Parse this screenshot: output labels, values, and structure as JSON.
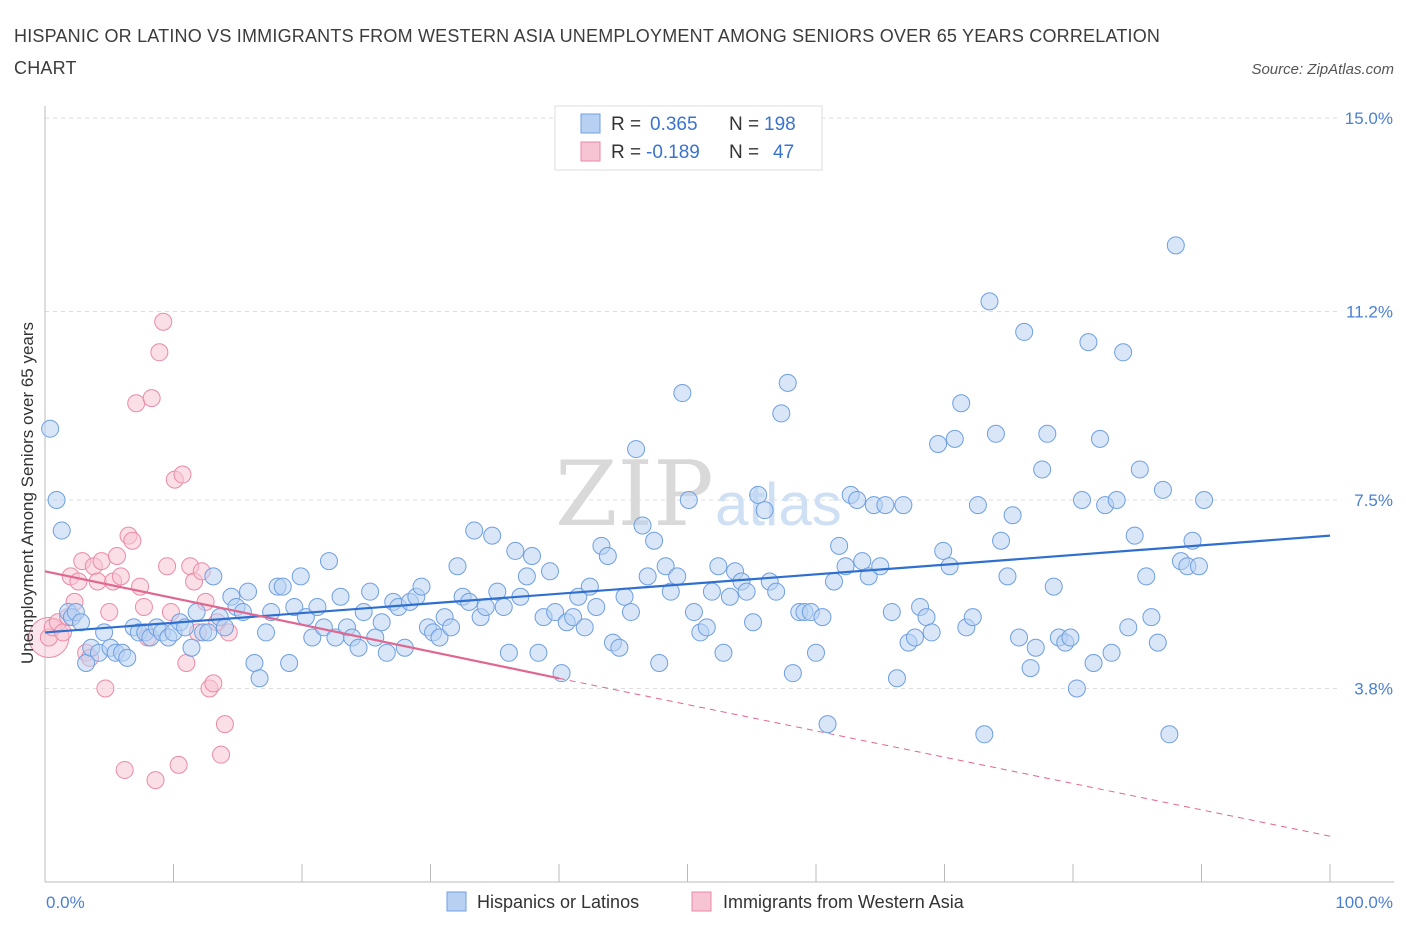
{
  "title": "HISPANIC OR LATINO VS IMMIGRANTS FROM WESTERN ASIA UNEMPLOYMENT AMONG SENIORS OVER 65 YEARS CORRELATION CHART",
  "source": "Source: ZipAtlas.com",
  "watermark": {
    "zip": "ZIP",
    "atlas": "atlas"
  },
  "legend_top": {
    "rows": [
      {
        "r_label": "R =",
        "r_value": "0.365",
        "n_label": "N =",
        "n_value": "198"
      },
      {
        "r_label": "R =",
        "r_value": "-0.189",
        "n_label": "N =",
        "n_value": "47"
      }
    ]
  },
  "legend_bottom": {
    "items": [
      {
        "label": "Hispanics or Latinos"
      },
      {
        "label": "Immigrants from Western Asia"
      }
    ]
  },
  "colors": {
    "blue_fill": "#b8d1f3",
    "blue_stroke": "#6f9fe0",
    "blue_line": "#2f6fd0",
    "pink_fill": "#f7c4d3",
    "pink_stroke": "#ea8aa7",
    "pink_line": "#e0678f",
    "tick_text": "#4a7fd4",
    "grid": "#dddddd"
  },
  "chart_data": {
    "type": "scatter",
    "ylabel": "Unemployment Among Seniors over 65 years",
    "xlim": [
      0,
      100
    ],
    "ylim": [
      0,
      15.0
    ],
    "x_tick_labels": [
      "0.0%",
      "100.0%"
    ],
    "y_ticks": [
      3.8,
      7.5,
      11.2,
      15.0
    ],
    "y_tick_labels": [
      "3.8%",
      "7.5%",
      "11.2%",
      "15.0%"
    ],
    "grid": "horizontal dashed",
    "series": [
      {
        "name": "Hispanics or Latinos",
        "trend": {
          "x0": 0,
          "y0": 4.9,
          "x1": 100,
          "y1": 6.8
        },
        "points": [
          [
            0.4,
            8.9
          ],
          [
            0.9,
            7.5
          ],
          [
            1.3,
            6.9
          ],
          [
            1.8,
            5.3
          ],
          [
            2.1,
            5.2
          ],
          [
            2.4,
            5.3
          ],
          [
            2.8,
            5.1
          ],
          [
            3.2,
            4.3
          ],
          [
            3.6,
            4.6
          ],
          [
            4.2,
            4.5
          ],
          [
            4.6,
            4.9
          ],
          [
            5.1,
            4.6
          ],
          [
            5.5,
            4.5
          ],
          [
            6.0,
            4.5
          ],
          [
            6.4,
            4.4
          ],
          [
            6.9,
            5.0
          ],
          [
            7.3,
            4.9
          ],
          [
            7.8,
            4.9
          ],
          [
            8.2,
            4.8
          ],
          [
            8.7,
            5.0
          ],
          [
            9.1,
            4.9
          ],
          [
            9.6,
            4.8
          ],
          [
            10.0,
            4.9
          ],
          [
            10.5,
            5.1
          ],
          [
            10.9,
            5.0
          ],
          [
            11.4,
            4.6
          ],
          [
            11.8,
            5.3
          ],
          [
            12.3,
            4.9
          ],
          [
            12.7,
            4.9
          ],
          [
            13.1,
            6.0
          ],
          [
            13.6,
            5.2
          ],
          [
            14.0,
            5.0
          ],
          [
            14.5,
            5.6
          ],
          [
            14.9,
            5.4
          ],
          [
            15.4,
            5.3
          ],
          [
            15.8,
            5.7
          ],
          [
            16.3,
            4.3
          ],
          [
            16.7,
            4.0
          ],
          [
            17.2,
            4.9
          ],
          [
            17.6,
            5.3
          ],
          [
            18.1,
            5.8
          ],
          [
            18.5,
            5.8
          ],
          [
            19.0,
            4.3
          ],
          [
            19.4,
            5.4
          ],
          [
            19.9,
            6.0
          ],
          [
            20.3,
            5.2
          ],
          [
            20.8,
            4.8
          ],
          [
            21.2,
            5.4
          ],
          [
            21.7,
            5.0
          ],
          [
            22.1,
            6.3
          ],
          [
            22.6,
            4.8
          ],
          [
            23.0,
            5.6
          ],
          [
            23.5,
            5.0
          ],
          [
            23.9,
            4.8
          ],
          [
            24.4,
            4.6
          ],
          [
            24.8,
            5.3
          ],
          [
            25.3,
            5.7
          ],
          [
            25.7,
            4.8
          ],
          [
            26.2,
            5.1
          ],
          [
            26.6,
            4.5
          ],
          [
            27.1,
            5.5
          ],
          [
            27.5,
            5.4
          ],
          [
            28.0,
            4.6
          ],
          [
            28.4,
            5.5
          ],
          [
            28.9,
            5.6
          ],
          [
            29.3,
            5.8
          ],
          [
            29.8,
            5.0
          ],
          [
            30.2,
            4.9
          ],
          [
            30.7,
            4.8
          ],
          [
            31.1,
            5.2
          ],
          [
            31.6,
            5.0
          ],
          [
            32.1,
            6.2
          ],
          [
            32.5,
            5.6
          ],
          [
            33.0,
            5.5
          ],
          [
            33.4,
            6.9
          ],
          [
            33.9,
            5.2
          ],
          [
            34.3,
            5.4
          ],
          [
            34.8,
            6.8
          ],
          [
            35.2,
            5.7
          ],
          [
            35.7,
            5.4
          ],
          [
            36.1,
            4.5
          ],
          [
            36.6,
            6.5
          ],
          [
            37.0,
            5.6
          ],
          [
            37.5,
            6.0
          ],
          [
            37.9,
            6.4
          ],
          [
            38.4,
            4.5
          ],
          [
            38.8,
            5.2
          ],
          [
            39.3,
            6.1
          ],
          [
            39.7,
            5.3
          ],
          [
            40.2,
            4.1
          ],
          [
            40.6,
            5.1
          ],
          [
            41.1,
            5.2
          ],
          [
            41.5,
            5.6
          ],
          [
            42.0,
            5.0
          ],
          [
            42.4,
            5.8
          ],
          [
            42.9,
            5.4
          ],
          [
            43.3,
            6.6
          ],
          [
            43.8,
            6.4
          ],
          [
            44.2,
            4.7
          ],
          [
            44.7,
            4.6
          ],
          [
            45.1,
            5.6
          ],
          [
            45.6,
            5.3
          ],
          [
            46.0,
            8.5
          ],
          [
            46.5,
            7.0
          ],
          [
            46.9,
            6.0
          ],
          [
            47.4,
            6.7
          ],
          [
            47.8,
            4.3
          ],
          [
            48.3,
            6.2
          ],
          [
            48.7,
            5.7
          ],
          [
            49.2,
            6.0
          ],
          [
            49.6,
            9.6
          ],
          [
            50.1,
            7.5
          ],
          [
            50.5,
            5.3
          ],
          [
            51.0,
            4.9
          ],
          [
            51.5,
            5.0
          ],
          [
            51.9,
            5.7
          ],
          [
            52.4,
            6.2
          ],
          [
            52.8,
            4.5
          ],
          [
            53.3,
            5.6
          ],
          [
            53.7,
            6.1
          ],
          [
            54.2,
            5.9
          ],
          [
            54.6,
            5.7
          ],
          [
            55.1,
            5.1
          ],
          [
            55.5,
            7.6
          ],
          [
            56.0,
            7.3
          ],
          [
            56.4,
            5.9
          ],
          [
            56.9,
            5.7
          ],
          [
            57.3,
            9.2
          ],
          [
            57.8,
            9.8
          ],
          [
            58.2,
            4.1
          ],
          [
            58.7,
            5.3
          ],
          [
            59.1,
            5.3
          ],
          [
            59.6,
            5.3
          ],
          [
            60.0,
            4.5
          ],
          [
            60.5,
            5.2
          ],
          [
            60.9,
            3.1
          ],
          [
            61.4,
            5.9
          ],
          [
            61.8,
            6.6
          ],
          [
            62.3,
            6.2
          ],
          [
            62.7,
            7.6
          ],
          [
            63.2,
            7.5
          ],
          [
            63.6,
            6.3
          ],
          [
            64.1,
            6.0
          ],
          [
            64.5,
            7.4
          ],
          [
            65.0,
            6.2
          ],
          [
            65.4,
            7.4
          ],
          [
            65.9,
            5.3
          ],
          [
            66.3,
            4.0
          ],
          [
            66.8,
            7.4
          ],
          [
            67.2,
            4.7
          ],
          [
            67.7,
            4.8
          ],
          [
            68.1,
            5.4
          ],
          [
            68.6,
            5.2
          ],
          [
            69.0,
            4.9
          ],
          [
            69.5,
            8.6
          ],
          [
            69.9,
            6.5
          ],
          [
            70.4,
            6.2
          ],
          [
            70.8,
            8.7
          ],
          [
            71.3,
            9.4
          ],
          [
            71.7,
            5.0
          ],
          [
            72.2,
            5.2
          ],
          [
            72.6,
            7.4
          ],
          [
            73.1,
            2.9
          ],
          [
            73.5,
            11.4
          ],
          [
            74.0,
            8.8
          ],
          [
            74.4,
            6.7
          ],
          [
            74.9,
            6.0
          ],
          [
            75.3,
            7.2
          ],
          [
            75.8,
            4.8
          ],
          [
            76.2,
            10.8
          ],
          [
            76.7,
            4.2
          ],
          [
            77.1,
            4.6
          ],
          [
            77.6,
            8.1
          ],
          [
            78.0,
            8.8
          ],
          [
            78.5,
            5.8
          ],
          [
            78.9,
            4.8
          ],
          [
            79.4,
            4.7
          ],
          [
            79.8,
            4.8
          ],
          [
            80.3,
            3.8
          ],
          [
            80.7,
            7.5
          ],
          [
            81.2,
            10.6
          ],
          [
            81.6,
            4.3
          ],
          [
            82.1,
            8.7
          ],
          [
            82.5,
            7.4
          ],
          [
            83.0,
            4.5
          ],
          [
            83.4,
            7.5
          ],
          [
            83.9,
            10.4
          ],
          [
            84.3,
            5.0
          ],
          [
            84.8,
            6.8
          ],
          [
            85.2,
            8.1
          ],
          [
            85.7,
            6.0
          ],
          [
            86.1,
            5.2
          ],
          [
            86.6,
            4.7
          ],
          [
            87.0,
            7.7
          ],
          [
            87.5,
            2.9
          ],
          [
            88.0,
            12.5
          ],
          [
            88.4,
            6.3
          ],
          [
            88.9,
            6.2
          ],
          [
            89.3,
            6.7
          ],
          [
            89.8,
            6.2
          ],
          [
            90.2,
            7.5
          ]
        ]
      },
      {
        "name": "Immigrants from Western Asia",
        "trend": {
          "x0": 0,
          "y0": 6.1,
          "x1": 40,
          "y1": 4.0,
          "dash_to_x": 100,
          "dash_to_y": 0.9
        },
        "points": [
          [
            0.3,
            4.8
          ],
          [
            0.6,
            5.0
          ],
          [
            1.0,
            5.1
          ],
          [
            1.4,
            4.9
          ],
          [
            1.8,
            5.2
          ],
          [
            2.0,
            6.0
          ],
          [
            2.3,
            5.5
          ],
          [
            2.6,
            5.9
          ],
          [
            2.9,
            6.3
          ],
          [
            3.2,
            4.5
          ],
          [
            3.5,
            4.4
          ],
          [
            3.8,
            6.2
          ],
          [
            4.1,
            5.9
          ],
          [
            4.4,
            6.3
          ],
          [
            4.7,
            3.8
          ],
          [
            5.0,
            5.3
          ],
          [
            5.3,
            5.9
          ],
          [
            5.6,
            6.4
          ],
          [
            5.9,
            6.0
          ],
          [
            6.2,
            2.2
          ],
          [
            6.5,
            6.8
          ],
          [
            6.8,
            6.7
          ],
          [
            7.1,
            9.4
          ],
          [
            7.4,
            5.8
          ],
          [
            7.7,
            5.4
          ],
          [
            8.0,
            4.8
          ],
          [
            8.3,
            9.5
          ],
          [
            8.6,
            2.0
          ],
          [
            8.9,
            10.4
          ],
          [
            9.2,
            11.0
          ],
          [
            9.5,
            6.2
          ],
          [
            9.8,
            5.3
          ],
          [
            10.1,
            7.9
          ],
          [
            10.4,
            2.3
          ],
          [
            10.7,
            8.0
          ],
          [
            11.0,
            4.3
          ],
          [
            11.3,
            6.2
          ],
          [
            11.6,
            5.9
          ],
          [
            11.9,
            4.9
          ],
          [
            12.2,
            6.1
          ],
          [
            12.5,
            5.5
          ],
          [
            12.8,
            3.8
          ],
          [
            13.1,
            3.9
          ],
          [
            13.4,
            5.1
          ],
          [
            13.7,
            2.5
          ],
          [
            14.0,
            3.1
          ],
          [
            14.3,
            4.9
          ]
        ]
      }
    ]
  }
}
